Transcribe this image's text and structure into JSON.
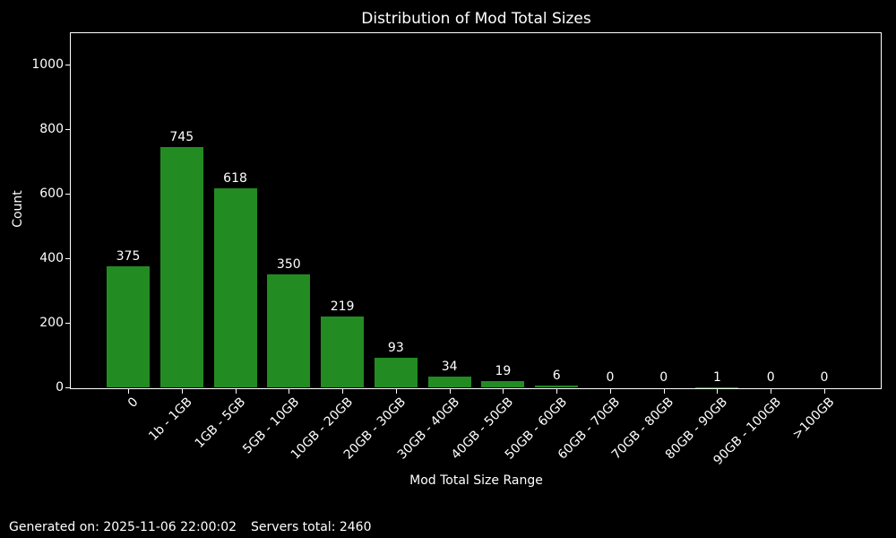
{
  "chart_data": {
    "type": "bar",
    "title": "Distribution of Mod Total Sizes",
    "xlabel": "Mod Total Size Range",
    "ylabel": "Count",
    "categories": [
      "0",
      "1b - 1GB",
      "1GB - 5GB",
      "5GB - 10GB",
      "10GB - 20GB",
      "20GB - 30GB",
      "30GB - 40GB",
      "40GB - 50GB",
      "50GB - 60GB",
      "60GB - 70GB",
      "70GB - 80GB",
      "80GB - 90GB",
      "90GB - 100GB",
      ">100GB"
    ],
    "values": [
      375,
      745,
      618,
      350,
      219,
      93,
      34,
      19,
      6,
      0,
      0,
      1,
      0,
      0
    ],
    "yticks": [
      0,
      200,
      400,
      600,
      800,
      1000
    ],
    "ylim": [
      0,
      1100
    ],
    "x_tick_rotation": 45,
    "grid": false,
    "legend": "none",
    "bar_color": "#228B22",
    "background_color": "#000000",
    "text_color": "#ffffff"
  },
  "footer": {
    "generated": "Generated on: 2025-11-06 22:00:02",
    "servers_total": "Servers total: 2460"
  }
}
